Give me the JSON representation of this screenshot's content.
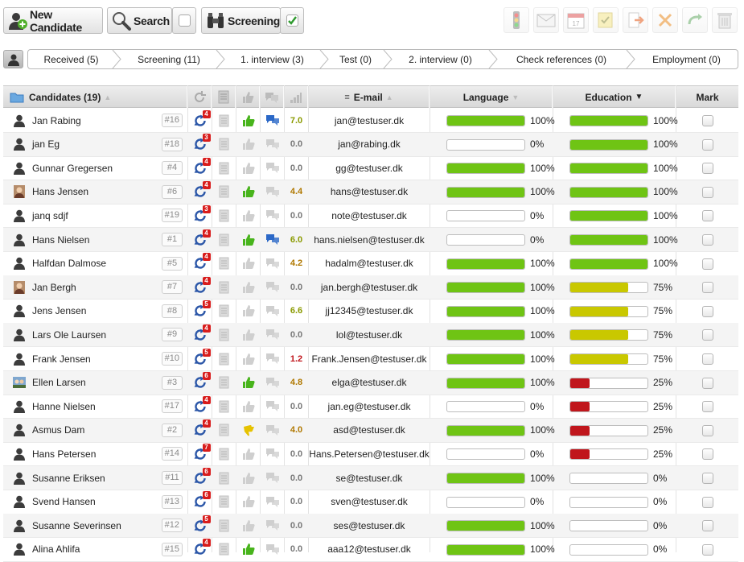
{
  "toolbar": {
    "new_candidate_label": "New Candidate",
    "search_label": "Search",
    "screening_label": "Screening"
  },
  "pipeline": [
    {
      "label": "Received (5)"
    },
    {
      "label": "Screening (11)"
    },
    {
      "label": "1. interview (3)"
    },
    {
      "label": "Test (0)"
    },
    {
      "label": "2. interview (0)"
    },
    {
      "label": "Check references (0)"
    },
    {
      "label": "Employment (0)"
    }
  ],
  "table": {
    "headers": {
      "candidates": "Candidates (19)",
      "email": "E-mail",
      "language": "Language",
      "education": "Education",
      "mark": "Mark"
    },
    "rows": [
      {
        "name": "Jan Rabing",
        "id": "#16",
        "badge": "4",
        "thumb": "up",
        "bubble": true,
        "score": "7.0",
        "email": "jan@testuser.dk",
        "language": 100,
        "language_pct": "100%",
        "education": 100,
        "education_pct": "100%",
        "avatar": "silhouette"
      },
      {
        "name": "jan Eg",
        "id": "#18",
        "badge": "3",
        "thumb": "none",
        "bubble": false,
        "score": "0.0",
        "email": "jan@rabing.dk",
        "language": 0,
        "language_pct": "0%",
        "education": 100,
        "education_pct": "100%",
        "avatar": "silhouette"
      },
      {
        "name": "Gunnar Gregersen",
        "id": "#4",
        "badge": "4",
        "thumb": "none",
        "bubble": false,
        "score": "0.0",
        "email": "gg@testuser.dk",
        "language": 100,
        "language_pct": "100%",
        "education": 100,
        "education_pct": "100%",
        "avatar": "silhouette"
      },
      {
        "name": "Hans Jensen",
        "id": "#6",
        "badge": "4",
        "thumb": "up",
        "bubble": false,
        "score": "4.4",
        "email": "hans@testuser.dk",
        "language": 100,
        "language_pct": "100%",
        "education": 100,
        "education_pct": "100%",
        "avatar": "photo"
      },
      {
        "name": "janq sdjf",
        "id": "#19",
        "badge": "3",
        "thumb": "none",
        "bubble": false,
        "score": "0.0",
        "email": "note@testuser.dk",
        "language": 0,
        "language_pct": "0%",
        "education": 100,
        "education_pct": "100%",
        "avatar": "silhouette"
      },
      {
        "name": "Hans Nielsen",
        "id": "#1",
        "badge": "4",
        "thumb": "up",
        "bubble": true,
        "score": "6.0",
        "email": "hans.nielsen@testuser.dk",
        "language": 0,
        "language_pct": "0%",
        "education": 100,
        "education_pct": "100%",
        "avatar": "silhouette"
      },
      {
        "name": "Halfdan Dalmose",
        "id": "#5",
        "badge": "4",
        "thumb": "none",
        "bubble": false,
        "score": "4.2",
        "email": "hadalm@testuser.dk",
        "language": 100,
        "language_pct": "100%",
        "education": 100,
        "education_pct": "100%",
        "avatar": "silhouette"
      },
      {
        "name": "Jan Bergh",
        "id": "#7",
        "badge": "4",
        "thumb": "none",
        "bubble": false,
        "score": "0.0",
        "email": "jan.bergh@testuser.dk",
        "language": 100,
        "language_pct": "100%",
        "education": 75,
        "education_pct": "75%",
        "avatar": "photo"
      },
      {
        "name": "Jens Jensen",
        "id": "#8",
        "badge": "5",
        "thumb": "none",
        "bubble": false,
        "score": "6.6",
        "email": "jj12345@testuser.dk",
        "language": 100,
        "language_pct": "100%",
        "education": 75,
        "education_pct": "75%",
        "avatar": "silhouette"
      },
      {
        "name": "Lars Ole Laursen",
        "id": "#9",
        "badge": "4",
        "thumb": "none",
        "bubble": false,
        "score": "0.0",
        "email": "lol@testuser.dk",
        "language": 100,
        "language_pct": "100%",
        "education": 75,
        "education_pct": "75%",
        "avatar": "silhouette"
      },
      {
        "name": "Frank Jensen",
        "id": "#10",
        "badge": "5",
        "thumb": "none",
        "bubble": false,
        "score": "1.2",
        "email": "Frank.Jensen@testuser.dk",
        "language": 100,
        "language_pct": "100%",
        "education": 75,
        "education_pct": "75%",
        "avatar": "silhouette"
      },
      {
        "name": "Ellen Larsen",
        "id": "#3",
        "badge": "6",
        "thumb": "up",
        "bubble": false,
        "score": "4.8",
        "email": "elga@testuser.dk",
        "language": 100,
        "language_pct": "100%",
        "education": 25,
        "education_pct": "25%",
        "avatar": "photo2"
      },
      {
        "name": "Hanne Nielsen",
        "id": "#17",
        "badge": "4",
        "thumb": "none",
        "bubble": false,
        "score": "0.0",
        "email": "jan.eg@testuser.dk",
        "language": 0,
        "language_pct": "0%",
        "education": 25,
        "education_pct": "25%",
        "avatar": "silhouette"
      },
      {
        "name": "Asmus Dam",
        "id": "#2",
        "badge": "4",
        "thumb": "side",
        "bubble": false,
        "score": "4.0",
        "email": "asd@testuser.dk",
        "language": 100,
        "language_pct": "100%",
        "education": 25,
        "education_pct": "25%",
        "avatar": "silhouette"
      },
      {
        "name": "Hans Petersen",
        "id": "#14",
        "badge": "7",
        "thumb": "none",
        "bubble": false,
        "score": "0.0",
        "email": "Hans.Petersen@testuser.dk",
        "language": 0,
        "language_pct": "0%",
        "education": 25,
        "education_pct": "25%",
        "avatar": "silhouette"
      },
      {
        "name": "Susanne Eriksen",
        "id": "#11",
        "badge": "6",
        "thumb": "none",
        "bubble": false,
        "score": "0.0",
        "email": "se@testuser.dk",
        "language": 100,
        "language_pct": "100%",
        "education": 0,
        "education_pct": "0%",
        "avatar": "silhouette"
      },
      {
        "name": "Svend Hansen",
        "id": "#13",
        "badge": "6",
        "thumb": "none",
        "bubble": false,
        "score": "0.0",
        "email": "sven@testuser.dk",
        "language": 0,
        "language_pct": "0%",
        "education": 0,
        "education_pct": "0%",
        "avatar": "silhouette"
      },
      {
        "name": "Susanne Severinsen",
        "id": "#12",
        "badge": "5",
        "thumb": "none",
        "bubble": false,
        "score": "0.0",
        "email": "ses@testuser.dk",
        "language": 100,
        "language_pct": "100%",
        "education": 0,
        "education_pct": "0%",
        "avatar": "silhouette"
      },
      {
        "name": "Alina Ahlifa",
        "id": "#15",
        "badge": "4",
        "thumb": "up",
        "bubble": false,
        "score": "0.0",
        "email": "aaa12@testuser.dk",
        "language": 100,
        "language_pct": "100%",
        "education": 0,
        "education_pct": "0%",
        "avatar": "silhouette"
      }
    ]
  },
  "colors": {
    "bar_full": "#6fc414",
    "bar_mid": "#c9c800",
    "bar_low": "#c0161c",
    "score_high": "#8a9a00",
    "score_mid": "#b07800",
    "score_low": "#c0161c",
    "score_zero": "#777777",
    "badge": "#d81c1c",
    "thumb_green": "#48b41c",
    "bubble_blue": "#2b68c7"
  },
  "icons": {
    "new_candidate": "person-add-icon",
    "search": "magnifier-icon",
    "screening": "binoculars-icon",
    "right_toolbar": [
      "traffic-light-icon",
      "envelope-icon",
      "calendar-icon",
      "note-check-icon",
      "export-icon",
      "delete-x-icon",
      "redo-icon",
      "trash-icon"
    ]
  }
}
